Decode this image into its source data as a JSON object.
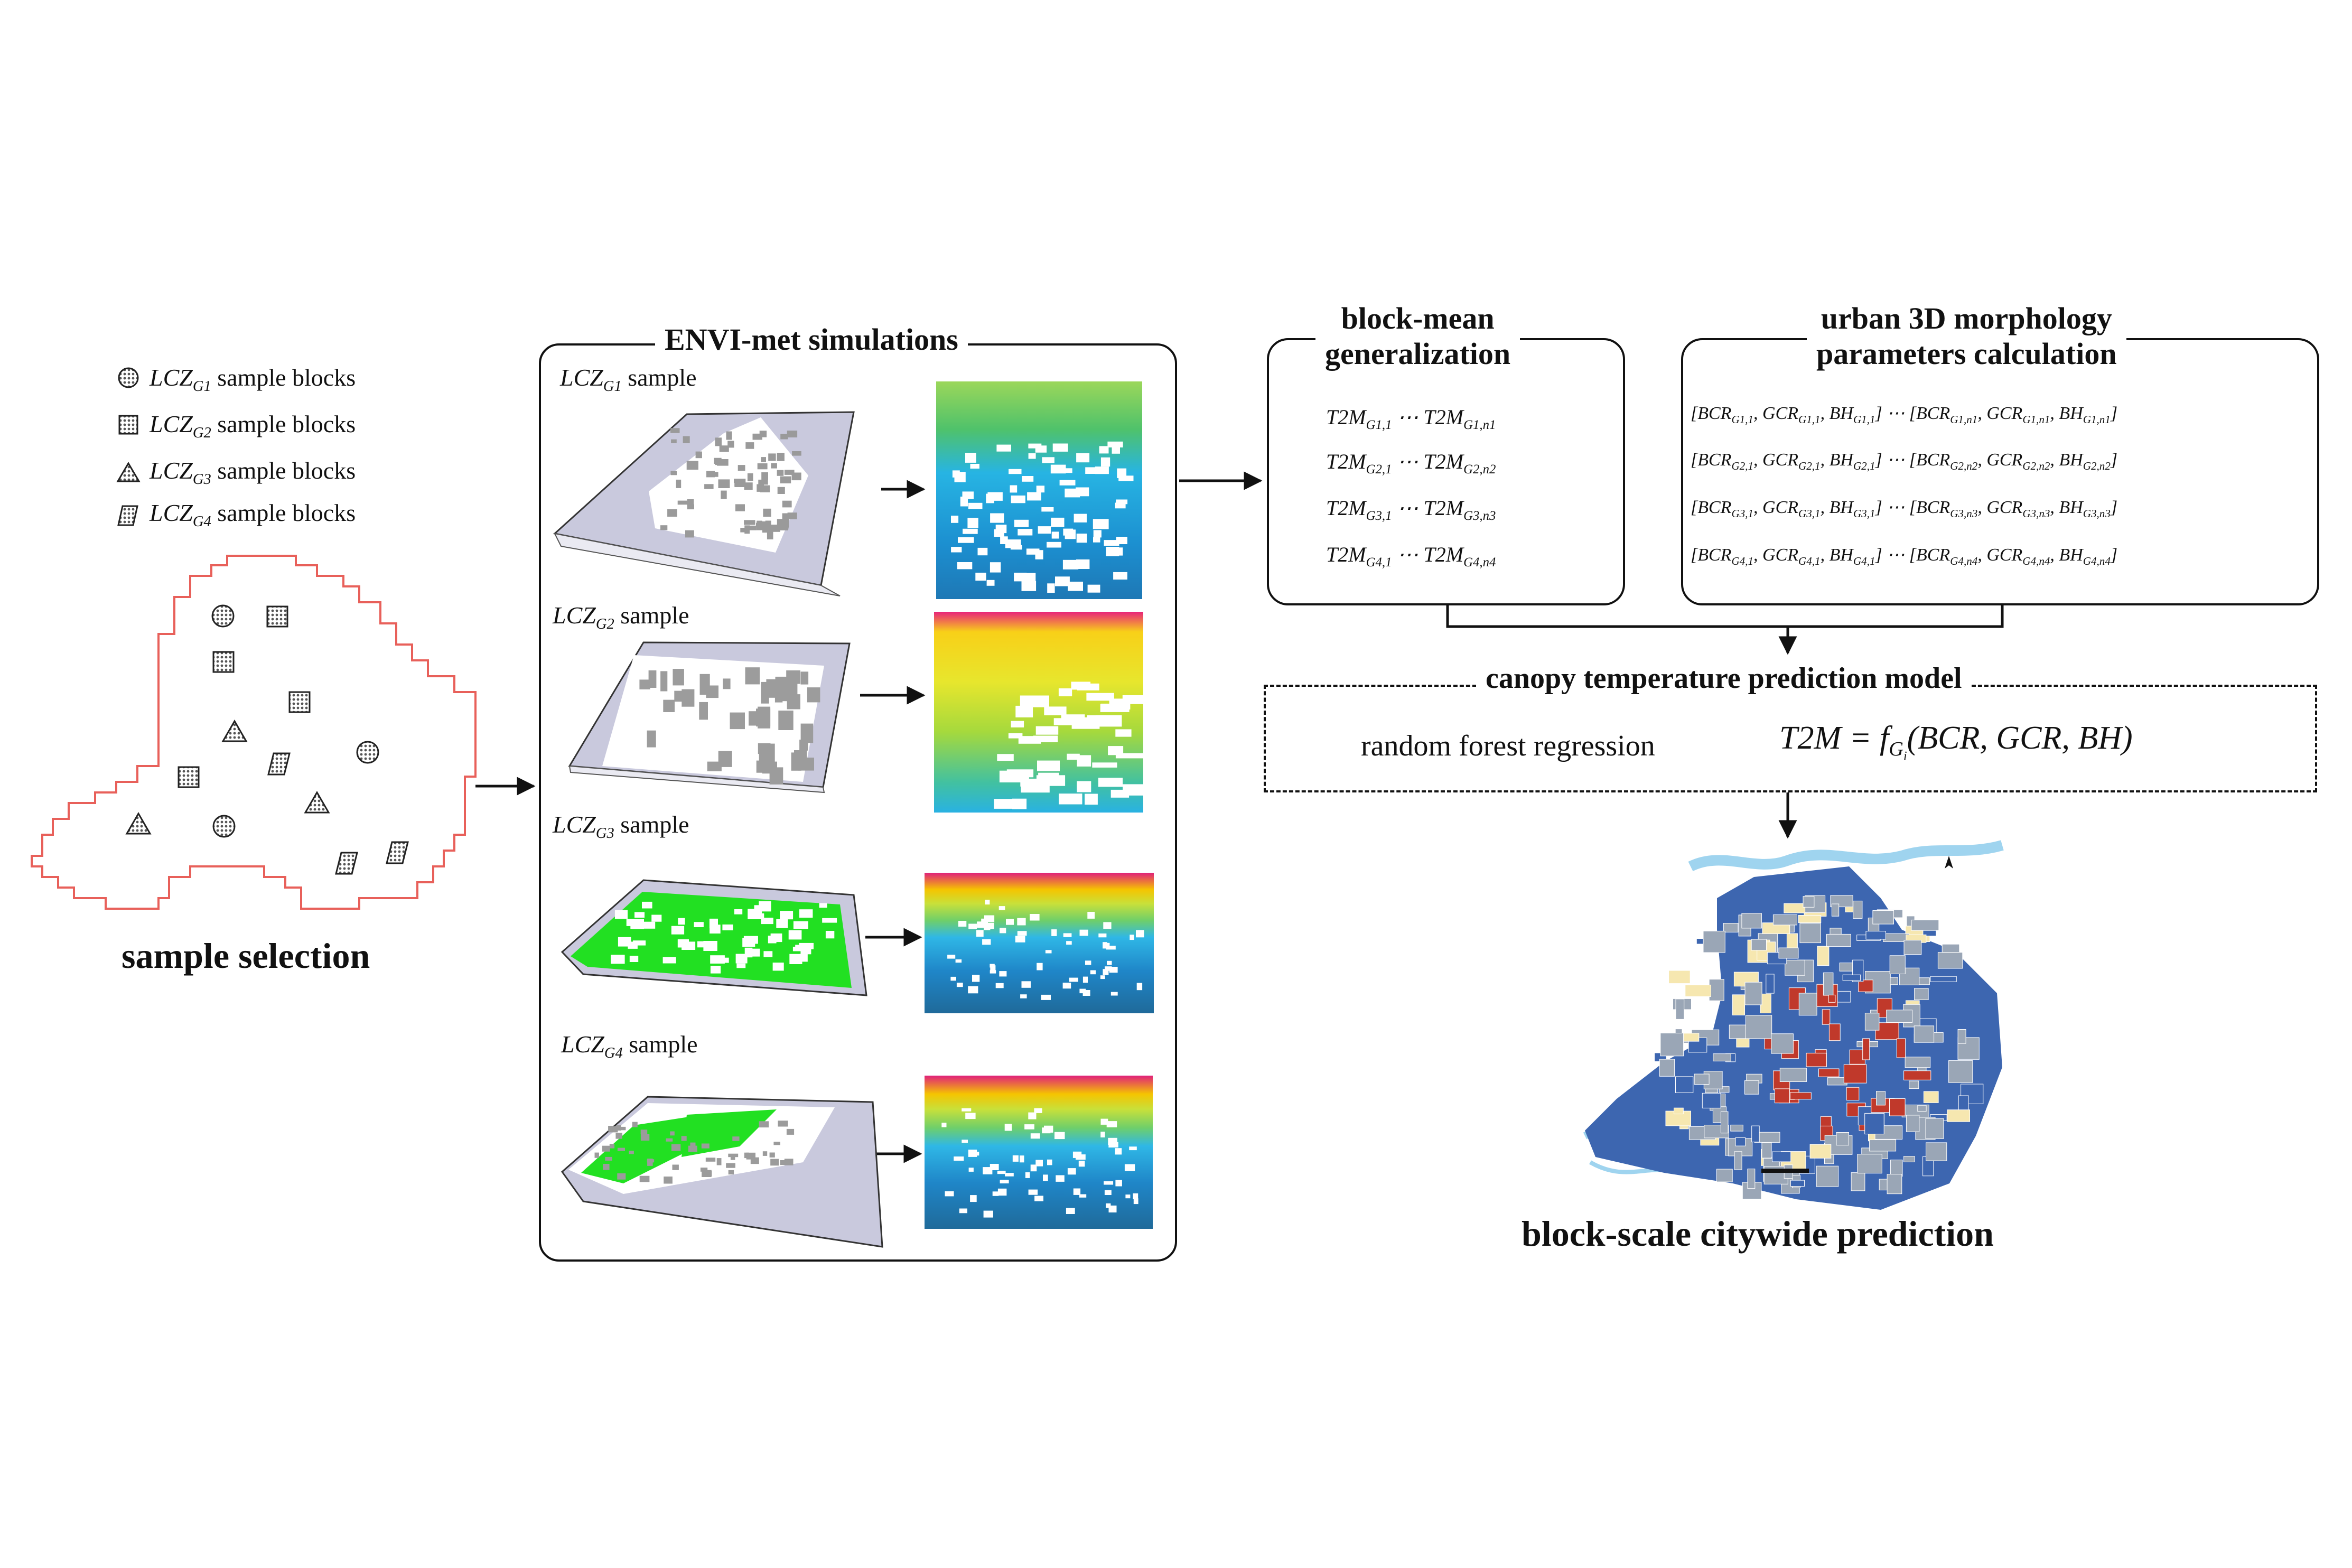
{
  "legend": {
    "items": [
      {
        "lcz": "LCZ",
        "sub": "G1",
        "text": "sample blocks",
        "marker": "circle-hatch-icon"
      },
      {
        "lcz": "LCZ",
        "sub": "G2",
        "text": "sample blocks",
        "marker": "square-hatch-icon"
      },
      {
        "lcz": "LCZ",
        "sub": "G3",
        "text": "sample blocks",
        "marker": "triangle-hatch-icon"
      },
      {
        "lcz": "LCZ",
        "sub": "G4",
        "text": "sample blocks",
        "marker": "parallelogram-hatch-icon"
      }
    ]
  },
  "sample_selection": {
    "title": "sample selection"
  },
  "envi": {
    "title": "ENVI-met simulations",
    "samples": [
      {
        "lcz": "LCZ",
        "sub": "G1",
        "text": "sample"
      },
      {
        "lcz": "LCZ",
        "sub": "G2",
        "text": "sample"
      },
      {
        "lcz": "LCZ",
        "sub": "G3",
        "text": "sample"
      },
      {
        "lcz": "LCZ",
        "sub": "G4",
        "text": "sample"
      }
    ]
  },
  "block_mean": {
    "title_line1": "block-mean",
    "title_line2": "generalization",
    "rows": [
      {
        "a": "T2M",
        "a_sub": "G1,1",
        "dots": "⋯",
        "b": "T2M",
        "b_sub": "G1,n1"
      },
      {
        "a": "T2M",
        "a_sub": "G2,1",
        "dots": "⋯",
        "b": "T2M",
        "b_sub": "G2,n2"
      },
      {
        "a": "T2M",
        "a_sub": "G3,1",
        "dots": "⋯",
        "b": "T2M",
        "b_sub": "G3,n3"
      },
      {
        "a": "T2M",
        "a_sub": "G4,1",
        "dots": "⋯",
        "b": "T2M",
        "b_sub": "G4,n4"
      }
    ]
  },
  "morph": {
    "title_line1": "urban 3D morphology",
    "title_line2": "parameters calculation",
    "rows": [
      {
        "left": "[BCR",
        "l1": "G1,1",
        "gcr": ", GCR",
        "l2": "G1,1",
        "bh": ", BH",
        "l3": "G1,1",
        "mid": "] ⋯ [BCR",
        "r1": "G1,n1",
        "gcr2": ", GCR",
        "r2": "G1,n1",
        "bh2": ", BH",
        "r3": "G1,n1",
        "end": "]"
      },
      {
        "left": "[BCR",
        "l1": "G2,1",
        "gcr": ", GCR",
        "l2": "G2,1",
        "bh": ", BH",
        "l3": "G2,1",
        "mid": "] ⋯ [BCR",
        "r1": "G2,n2",
        "gcr2": ", GCR",
        "r2": "G2,n2",
        "bh2": ", BH",
        "r3": "G2,n2",
        "end": "]"
      },
      {
        "left": "[BCR",
        "l1": "G3,1",
        "gcr": ", GCR",
        "l2": "G3,1",
        "bh": ", BH",
        "l3": "G3,1",
        "mid": "] ⋯ [BCR",
        "r1": "G3,n3",
        "gcr2": ", GCR",
        "r2": "G3,n3",
        "bh2": ", BH",
        "r3": "G3,n3",
        "end": "]"
      },
      {
        "left": "[BCR",
        "l1": "G4,1",
        "gcr": ", GCR",
        "l2": "G4,1",
        "bh": ", BH",
        "l3": "G4,1",
        "mid": "] ⋯ [BCR",
        "r1": "G4,n4",
        "gcr2": ", GCR",
        "r2": "G4,n4",
        "bh2": ", BH",
        "r3": "G4,n4",
        "end": "]"
      }
    ]
  },
  "model": {
    "title": "canopy temperature prediction model",
    "method": "random forest regression",
    "eq_lhs": "T2M = f",
    "eq_sub": "G",
    "eq_subsub": "i",
    "eq_rhs": "(BCR, GCR, BH)"
  },
  "prediction": {
    "title": "block-scale citywide prediction"
  },
  "colors": {
    "outline": "#e8605a",
    "box": "#111111",
    "map_blue": "#3d66b0",
    "map_grey": "#9aa6b6",
    "map_yellow": "#f6e7b0",
    "map_red": "#c0392b",
    "green": "#22dd22"
  }
}
